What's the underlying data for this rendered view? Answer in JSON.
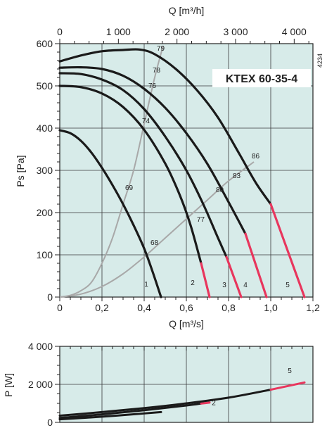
{
  "chart_data": [
    {
      "type": "line",
      "title": "KTEX 60-35-4",
      "code": "4234",
      "xlabel": "Q [m³/s]",
      "x_top_label": "Q [m³/h]",
      "ylabel": "Ps [Pa]",
      "xlim": [
        0,
        1.2
      ],
      "ylim": [
        0,
        600
      ],
      "x_ticks": [
        "0",
        "0,2",
        "0,4",
        "0,6",
        "0,8",
        "1,0",
        "1,2"
      ],
      "x_top_ticks": [
        "0",
        "1 000",
        "2 000",
        "3 000",
        "4 000"
      ],
      "y_ticks": [
        "0",
        "100",
        "200",
        "300",
        "400",
        "500",
        "600"
      ],
      "colors": {
        "curve": "#1a1a1a",
        "overload": "#e8365d",
        "system": "#a8a8a8",
        "plot_bg": "#d7ebe9",
        "grid": "#3a3a3a"
      },
      "series": [
        {
          "name": "1",
          "points": [
            [
              0,
              395
            ],
            [
              0.05,
              388
            ],
            [
              0.1,
              370
            ],
            [
              0.15,
              342
            ],
            [
              0.2,
              306
            ],
            [
              0.25,
              265
            ],
            [
              0.3,
              220
            ],
            [
              0.35,
              170
            ],
            [
              0.4,
              115
            ],
            [
              0.44,
              60
            ],
            [
              0.48,
              0
            ]
          ],
          "overload_from": null
        },
        {
          "name": "2",
          "points": [
            [
              0,
              500
            ],
            [
              0.1,
              497
            ],
            [
              0.2,
              482
            ],
            [
              0.3,
              450
            ],
            [
              0.4,
              396
            ],
            [
              0.5,
              316
            ],
            [
              0.57,
              240
            ],
            [
              0.62,
              170
            ],
            [
              0.67,
              80
            ],
            [
              0.71,
              0
            ]
          ],
          "overload_from": 0.67
        },
        {
          "name": "3",
          "points": [
            [
              0,
              530
            ],
            [
              0.1,
              528
            ],
            [
              0.2,
              515
            ],
            [
              0.3,
              490
            ],
            [
              0.4,
              445
            ],
            [
              0.5,
              380
            ],
            [
              0.6,
              300
            ],
            [
              0.68,
              220
            ],
            [
              0.75,
              140
            ],
            [
              0.79,
              95
            ],
            [
              0.86,
              0
            ]
          ],
          "overload_from": 0.79
        },
        {
          "name": "4",
          "points": [
            [
              0,
              543
            ],
            [
              0.1,
              544
            ],
            [
              0.2,
              540
            ],
            [
              0.3,
              524
            ],
            [
              0.4,
              493
            ],
            [
              0.5,
              448
            ],
            [
              0.6,
              388
            ],
            [
              0.7,
              315
            ],
            [
              0.8,
              225
            ],
            [
              0.88,
              150
            ],
            [
              0.98,
              0
            ]
          ],
          "overload_from": 0.88
        },
        {
          "name": "5",
          "points": [
            [
              0,
              558
            ],
            [
              0.1,
              572
            ],
            [
              0.2,
              582
            ],
            [
              0.3,
              585
            ],
            [
              0.38,
              586
            ],
            [
              0.45,
              575
            ],
            [
              0.55,
              540
            ],
            [
              0.65,
              490
            ],
            [
              0.75,
              425
            ],
            [
              0.85,
              340
            ],
            [
              0.93,
              270
            ],
            [
              1.0,
              220
            ],
            [
              1.16,
              0
            ]
          ],
          "overload_from": 1.0
        }
      ],
      "system_curves": [
        {
          "points": [
            [
              0,
              0
            ],
            [
              0.05,
              4
            ],
            [
              0.1,
              15
            ],
            [
              0.15,
              35
            ],
            [
              0.2,
              80
            ],
            [
              0.25,
              140
            ],
            [
              0.3,
              220
            ],
            [
              0.35,
              300
            ],
            [
              0.4,
              410
            ],
            [
              0.45,
              520
            ],
            [
              0.49,
              595
            ]
          ]
        },
        {
          "points": [
            [
              0,
              0
            ],
            [
              0.1,
              7
            ],
            [
              0.2,
              25
            ],
            [
              0.3,
              55
            ],
            [
              0.4,
              95
            ],
            [
              0.5,
              140
            ],
            [
              0.6,
              185
            ],
            [
              0.7,
              230
            ],
            [
              0.8,
              275
            ],
            [
              0.92,
              320
            ]
          ]
        }
      ],
      "efficiency_labels": [
        {
          "text": "79",
          "x": 0.45,
          "y": 590
        },
        {
          "text": "78",
          "x": 0.43,
          "y": 538
        },
        {
          "text": "76",
          "x": 0.41,
          "y": 502
        },
        {
          "text": "74",
          "x": 0.38,
          "y": 418
        },
        {
          "text": "69",
          "x": 0.3,
          "y": 260
        },
        {
          "text": "68",
          "x": 0.42,
          "y": 130
        },
        {
          "text": "77",
          "x": 0.64,
          "y": 185
        },
        {
          "text": "80",
          "x": 0.73,
          "y": 255
        },
        {
          "text": "83",
          "x": 0.81,
          "y": 288
        },
        {
          "text": "86",
          "x": 0.9,
          "y": 335
        }
      ],
      "curve_labels": [
        {
          "text": "1",
          "x": 0.41,
          "y": 25
        },
        {
          "text": "2",
          "x": 0.63,
          "y": 28
        },
        {
          "text": "3",
          "x": 0.78,
          "y": 23
        },
        {
          "text": "4",
          "x": 0.88,
          "y": 23
        },
        {
          "text": "5",
          "x": 1.08,
          "y": 23
        }
      ]
    },
    {
      "type": "line",
      "ylabel": "P [W]",
      "xlim": [
        0,
        1.2
      ],
      "ylim": [
        0,
        4000
      ],
      "y_ticks": [
        "0",
        "2 000",
        "4 000"
      ],
      "series": [
        {
          "name": "2",
          "points": [
            [
              0,
              230
            ],
            [
              0.2,
              420
            ],
            [
              0.4,
              640
            ],
            [
              0.6,
              890
            ],
            [
              0.67,
              990
            ],
            [
              0.71,
              1040
            ]
          ],
          "overload_from": 0.67,
          "show_label": true
        },
        {
          "name": "1",
          "points": [
            [
              0,
              160
            ],
            [
              0.2,
              300
            ],
            [
              0.4,
              470
            ],
            [
              0.48,
              540
            ]
          ],
          "overload_from": null,
          "show_label": false
        },
        {
          "name": "5",
          "points": [
            [
              0,
              350
            ],
            [
              0.2,
              540
            ],
            [
              0.4,
              750
            ],
            [
              0.6,
              1000
            ],
            [
              0.8,
              1300
            ],
            [
              1.0,
              1720
            ],
            [
              1.16,
              2100
            ]
          ],
          "overload_from": 1.0,
          "show_label": true
        }
      ],
      "curve_labels": [
        {
          "text": "2",
          "x": 0.73,
          "y": 900
        },
        {
          "text": "5",
          "x": 1.09,
          "y": 2600
        }
      ]
    }
  ]
}
